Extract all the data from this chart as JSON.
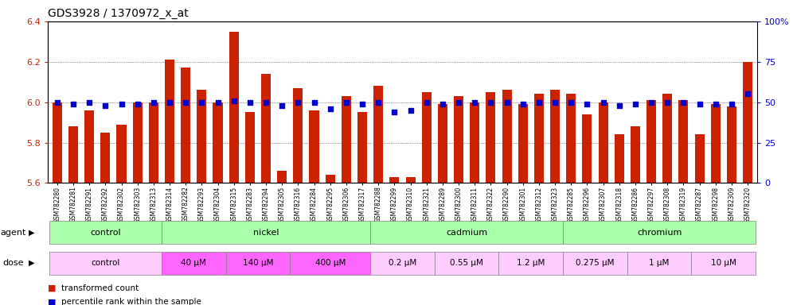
{
  "title": "GDS3928 / 1370972_x_at",
  "bar_color": "#CC2200",
  "dot_color": "#0000CC",
  "ylim_left": [
    5.6,
    6.4
  ],
  "ylim_right": [
    0,
    100
  ],
  "yticks_left": [
    5.6,
    5.8,
    6.0,
    6.2,
    6.4
  ],
  "yticks_right": [
    0,
    25,
    50,
    75,
    100
  ],
  "samples": [
    "GSM782280",
    "GSM782281",
    "GSM782291",
    "GSM782292",
    "GSM782302",
    "GSM782303",
    "GSM782313",
    "GSM782314",
    "GSM782282",
    "GSM782293",
    "GSM782304",
    "GSM782315",
    "GSM782283",
    "GSM782294",
    "GSM782305",
    "GSM782316",
    "GSM782284",
    "GSM782295",
    "GSM782306",
    "GSM782317",
    "GSM782288",
    "GSM782299",
    "GSM782310",
    "GSM782321",
    "GSM782289",
    "GSM782300",
    "GSM782311",
    "GSM782322",
    "GSM782290",
    "GSM782301",
    "GSM782312",
    "GSM782323",
    "GSM782285",
    "GSM782296",
    "GSM782307",
    "GSM782318",
    "GSM782286",
    "GSM782297",
    "GSM782308",
    "GSM782319",
    "GSM782287",
    "GSM782298",
    "GSM782309",
    "GSM782320"
  ],
  "bar_values": [
    6.0,
    5.88,
    5.96,
    5.85,
    5.89,
    6.0,
    6.0,
    6.21,
    6.17,
    6.06,
    6.0,
    6.35,
    5.95,
    6.14,
    5.66,
    6.07,
    5.96,
    5.64,
    6.03,
    5.95,
    6.08,
    5.63,
    5.63,
    6.05,
    5.99,
    6.03,
    6.0,
    6.05,
    6.06,
    5.99,
    6.04,
    6.06,
    6.04,
    5.94,
    6.0,
    5.84,
    5.88,
    6.01,
    6.04,
    6.01,
    5.84,
    5.99,
    5.98,
    6.2
  ],
  "dot_values_pct": [
    50,
    49,
    50,
    48,
    49,
    49,
    50,
    50,
    50,
    50,
    50,
    51,
    50,
    50,
    48,
    50,
    50,
    46,
    50,
    49,
    50,
    44,
    45,
    50,
    49,
    50,
    50,
    50,
    50,
    49,
    50,
    50,
    50,
    49,
    50,
    48,
    49,
    50,
    50,
    50,
    49,
    49,
    49,
    55
  ],
  "agent_groups": [
    {
      "label": "control",
      "start": 0,
      "end": 6,
      "color": "#AAFFAA"
    },
    {
      "label": "nickel",
      "start": 7,
      "end": 19,
      "color": "#AAFFAA"
    },
    {
      "label": "cadmium",
      "start": 20,
      "end": 31,
      "color": "#AAFFAA"
    },
    {
      "label": "chromium",
      "start": 32,
      "end": 43,
      "color": "#AAFFAA"
    }
  ],
  "dose_groups": [
    {
      "label": "control",
      "start": 0,
      "end": 6,
      "color": "#FFCCFF"
    },
    {
      "label": "40 μM",
      "start": 7,
      "end": 10,
      "color": "#FF66FF"
    },
    {
      "label": "140 μM",
      "start": 11,
      "end": 14,
      "color": "#FF66FF"
    },
    {
      "label": "400 μM",
      "start": 15,
      "end": 19,
      "color": "#FF66FF"
    },
    {
      "label": "0.2 μM",
      "start": 20,
      "end": 23,
      "color": "#FFCCFF"
    },
    {
      "label": "0.55 μM",
      "start": 24,
      "end": 27,
      "color": "#FFCCFF"
    },
    {
      "label": "1.2 μM",
      "start": 28,
      "end": 31,
      "color": "#FFCCFF"
    },
    {
      "label": "0.275 μM",
      "start": 32,
      "end": 35,
      "color": "#FFCCFF"
    },
    {
      "label": "1 μM",
      "start": 36,
      "end": 39,
      "color": "#FFCCFF"
    },
    {
      "label": "10 μM",
      "start": 40,
      "end": 43,
      "color": "#FFCCFF"
    }
  ],
  "legend_items": [
    {
      "label": "transformed count",
      "color": "#CC2200"
    },
    {
      "label": "percentile rank within the sample",
      "color": "#0000CC"
    }
  ]
}
